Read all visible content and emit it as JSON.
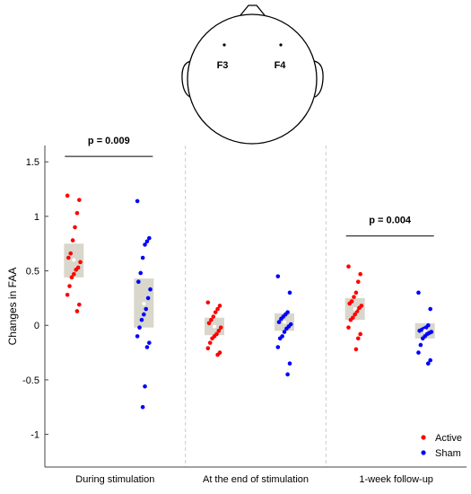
{
  "colors": {
    "active": "#ff0000",
    "sham": "#0000ff",
    "box_fill": "#d9d7cc",
    "axis": "#444444",
    "separator": "#cccccc"
  },
  "head": {
    "electrodes": [
      "F3",
      "F4"
    ]
  },
  "chart_data": {
    "type": "scatter",
    "ylabel": "Changes in FAA",
    "ylim": [
      -1.3,
      1.65
    ],
    "yticks": [
      -1,
      -0.5,
      0,
      0.5,
      1,
      1.5
    ],
    "ytick_labels": [
      "-1",
      "-0.5",
      "0",
      "0.5",
      "1",
      "1.5"
    ],
    "categories": [
      "During stimulation",
      "At the end of stimulation",
      "1-week follow-up"
    ],
    "legend": {
      "position": "bottom-right",
      "entries": [
        "Active",
        "Sham"
      ]
    },
    "significance": [
      {
        "group": 0,
        "label": "p = 0.009",
        "y": 1.55
      },
      {
        "group": 2,
        "label": "p = 0.004",
        "y": 0.82
      }
    ],
    "series": [
      {
        "name": "Active",
        "boxes": [
          {
            "q1": 0.44,
            "q3": 0.75,
            "mean": 0.6
          },
          {
            "q1": -0.09,
            "q3": 0.07,
            "mean": -0.01
          },
          {
            "q1": 0.05,
            "q3": 0.25,
            "mean": 0.15
          }
        ],
        "values": [
          [
            1.19,
            1.15,
            1.03,
            0.9,
            0.78,
            0.66,
            0.62,
            0.58,
            0.53,
            0.51,
            0.47,
            0.44,
            0.36,
            0.28,
            0.19,
            0.13
          ],
          [
            0.21,
            0.18,
            0.15,
            0.12,
            0.08,
            0.05,
            0.02,
            -0.02,
            -0.05,
            -0.08,
            -0.1,
            -0.12,
            -0.16,
            -0.21,
            -0.25,
            -0.27
          ],
          [
            0.54,
            0.47,
            0.4,
            0.3,
            0.26,
            0.22,
            0.2,
            0.18,
            0.16,
            0.13,
            0.1,
            0.07,
            0.05,
            -0.02,
            -0.08,
            -0.12,
            -0.22
          ]
        ]
      },
      {
        "name": "Sham",
        "boxes": [
          {
            "q1": -0.02,
            "q3": 0.43,
            "mean": 0.2
          },
          {
            "q1": -0.05,
            "q3": 0.11,
            "mean": 0.03
          },
          {
            "q1": -0.12,
            "q3": 0.02,
            "mean": -0.05
          }
        ],
        "values": [
          [
            1.14,
            0.8,
            0.77,
            0.74,
            0.62,
            0.48,
            0.4,
            0.33,
            0.25,
            0.15,
            0.1,
            0.05,
            -0.02,
            -0.1,
            -0.16,
            -0.2,
            -0.56,
            -0.75
          ],
          [
            0.45,
            0.3,
            0.12,
            0.1,
            0.08,
            0.06,
            0.03,
            0.01,
            -0.01,
            -0.03,
            -0.06,
            -0.1,
            -0.12,
            -0.2,
            -0.35,
            -0.45
          ],
          [
            0.3,
            0.15,
            0.0,
            -0.02,
            -0.03,
            -0.04,
            -0.05,
            -0.06,
            -0.07,
            -0.08,
            -0.1,
            -0.12,
            -0.18,
            -0.25,
            -0.32,
            -0.35
          ]
        ]
      }
    ]
  }
}
